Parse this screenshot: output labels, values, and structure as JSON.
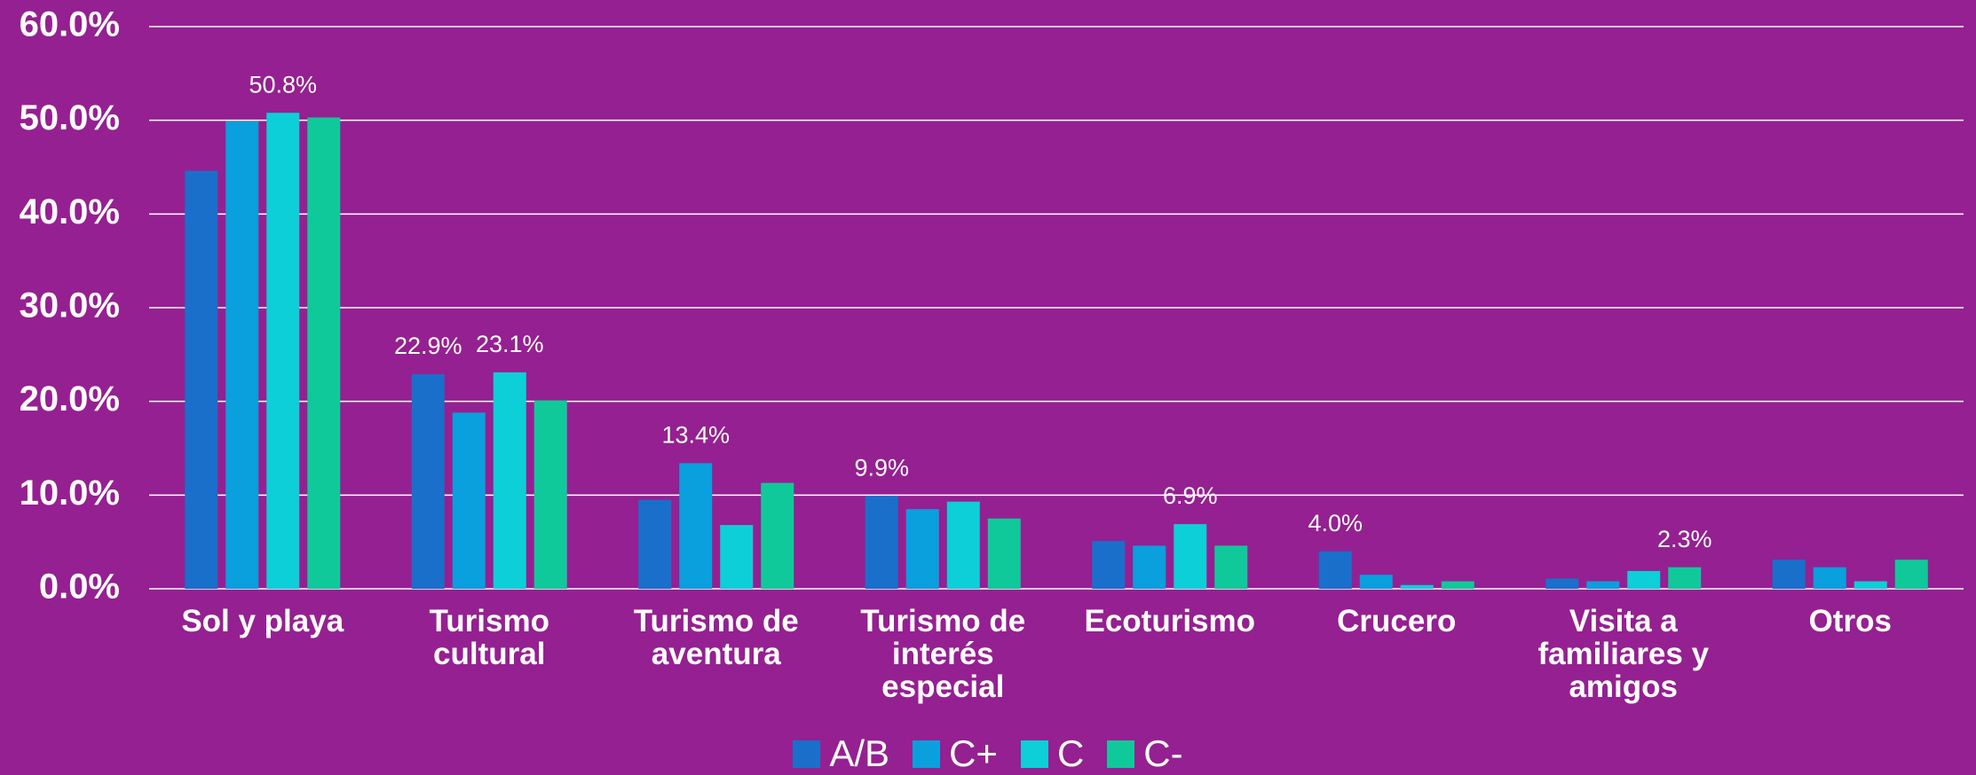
{
  "chart_data": {
    "type": "bar",
    "categories": [
      "Sol y playa",
      "Turismo cultural",
      "Turismo de aventura",
      "Turismo de interés especial",
      "Ecoturismo",
      "Crucero",
      "Visita a familiares y amigos",
      "Otros"
    ],
    "series": [
      {
        "name": "A/B",
        "color": "#1a6fca",
        "values": [
          44.6,
          22.9,
          9.5,
          9.9,
          5.1,
          4.0,
          1.1,
          3.1
        ],
        "value_labels": [
          null,
          "22.9%",
          null,
          "9.9%",
          null,
          "4.0%",
          null,
          null
        ]
      },
      {
        "name": "C+",
        "color": "#0a9fdd",
        "values": [
          49.9,
          18.8,
          13.4,
          8.5,
          4.6,
          1.5,
          0.8,
          2.3
        ],
        "value_labels": [
          null,
          null,
          "13.4%",
          null,
          null,
          null,
          null,
          null
        ]
      },
      {
        "name": "C",
        "color": "#0ccfd8",
        "values": [
          50.8,
          23.1,
          6.8,
          9.3,
          6.9,
          0.4,
          1.9,
          0.8
        ],
        "value_labels": [
          "50.8%",
          "23.1%",
          null,
          null,
          "6.9%",
          null,
          null,
          null
        ]
      },
      {
        "name": "C-",
        "color": "#10c99a",
        "values": [
          50.3,
          20.1,
          11.3,
          7.5,
          4.6,
          0.8,
          2.3,
          3.1
        ],
        "value_labels": [
          null,
          null,
          null,
          null,
          null,
          null,
          "2.3%",
          null
        ]
      }
    ],
    "ylim": [
      0,
      60
    ],
    "yticks": [
      {
        "value": 0,
        "label": "0.0%"
      },
      {
        "value": 10,
        "label": "10.0%"
      },
      {
        "value": 20,
        "label": "20.0%"
      },
      {
        "value": 30,
        "label": "30.0%"
      },
      {
        "value": 40,
        "label": "40.0%"
      },
      {
        "value": 50,
        "label": "50.0%"
      },
      {
        "value": 60,
        "label": "60.0%"
      }
    ],
    "grid": true
  }
}
